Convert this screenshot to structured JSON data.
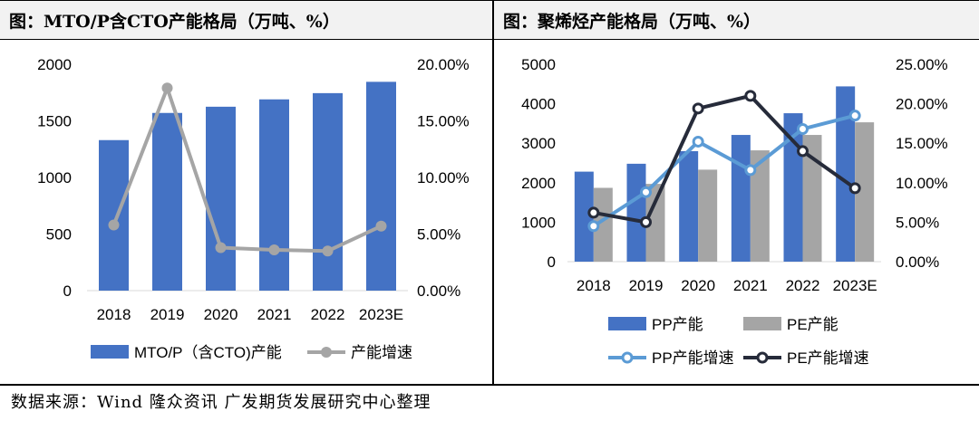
{
  "left_title": "图：MTO/P含CTO产能格局（万吨、%）",
  "right_title": "图：聚烯烃产能格局（万吨、%）",
  "footer": "数据来源：Wind 隆众资讯 广发期货发展研究中心整理",
  "chart_data": [
    {
      "type": "bar",
      "title": "图：MTO/P含CTO产能格局（万吨、%）",
      "categories": [
        "2018",
        "2019",
        "2020",
        "2021",
        "2022",
        "2023E"
      ],
      "y_left_ticks": [
        "0",
        "500",
        "1000",
        "1500",
        "2000"
      ],
      "y_left_range": [
        0,
        2000
      ],
      "y_right_ticks": [
        "0.00%",
        "5.00%",
        "10.00%",
        "15.00%",
        "20.00%"
      ],
      "y_right_range": [
        0,
        0.2
      ],
      "series": [
        {
          "name": "MTO/P（含CTO)产能",
          "kind": "bar",
          "axis": "left",
          "color": "#4472c4",
          "values": [
            1330,
            1570,
            1625,
            1690,
            1745,
            1845
          ]
        },
        {
          "name": "产能增速",
          "kind": "line",
          "axis": "right",
          "color": "#a5a5a5",
          "values": [
            0.058,
            0.179,
            0.038,
            0.036,
            0.035,
            0.057
          ]
        }
      ]
    },
    {
      "type": "bar",
      "title": "图：聚烯烃产能格局（万吨、%）",
      "categories": [
        "2018",
        "2019",
        "2020",
        "2021",
        "2022",
        "2023E"
      ],
      "y_left_ticks": [
        "0",
        "1000",
        "2000",
        "3000",
        "4000",
        "5000"
      ],
      "y_left_range": [
        0,
        5000
      ],
      "y_right_ticks": [
        "0.00%",
        "5.00%",
        "10.00%",
        "15.00%",
        "20.00%",
        "25.00%"
      ],
      "y_right_range": [
        0,
        0.25
      ],
      "series": [
        {
          "name": "PP产能",
          "kind": "bar",
          "axis": "left",
          "color": "#4472c4",
          "values": [
            2280,
            2480,
            2800,
            3210,
            3760,
            4440
          ]
        },
        {
          "name": "PE产能",
          "kind": "bar",
          "axis": "left",
          "color": "#a5a5a5",
          "values": [
            1870,
            1970,
            2330,
            2820,
            3210,
            3530
          ]
        },
        {
          "name": "PP产能增速",
          "kind": "line",
          "axis": "right",
          "color": "#5b9bd5",
          "values": [
            0.045,
            0.088,
            0.152,
            0.116,
            0.168,
            0.185
          ]
        },
        {
          "name": "PE产能增速",
          "kind": "line",
          "axis": "right",
          "color": "#262b3a",
          "values": [
            0.062,
            0.05,
            0.194,
            0.21,
            0.14,
            0.093
          ]
        }
      ]
    }
  ]
}
